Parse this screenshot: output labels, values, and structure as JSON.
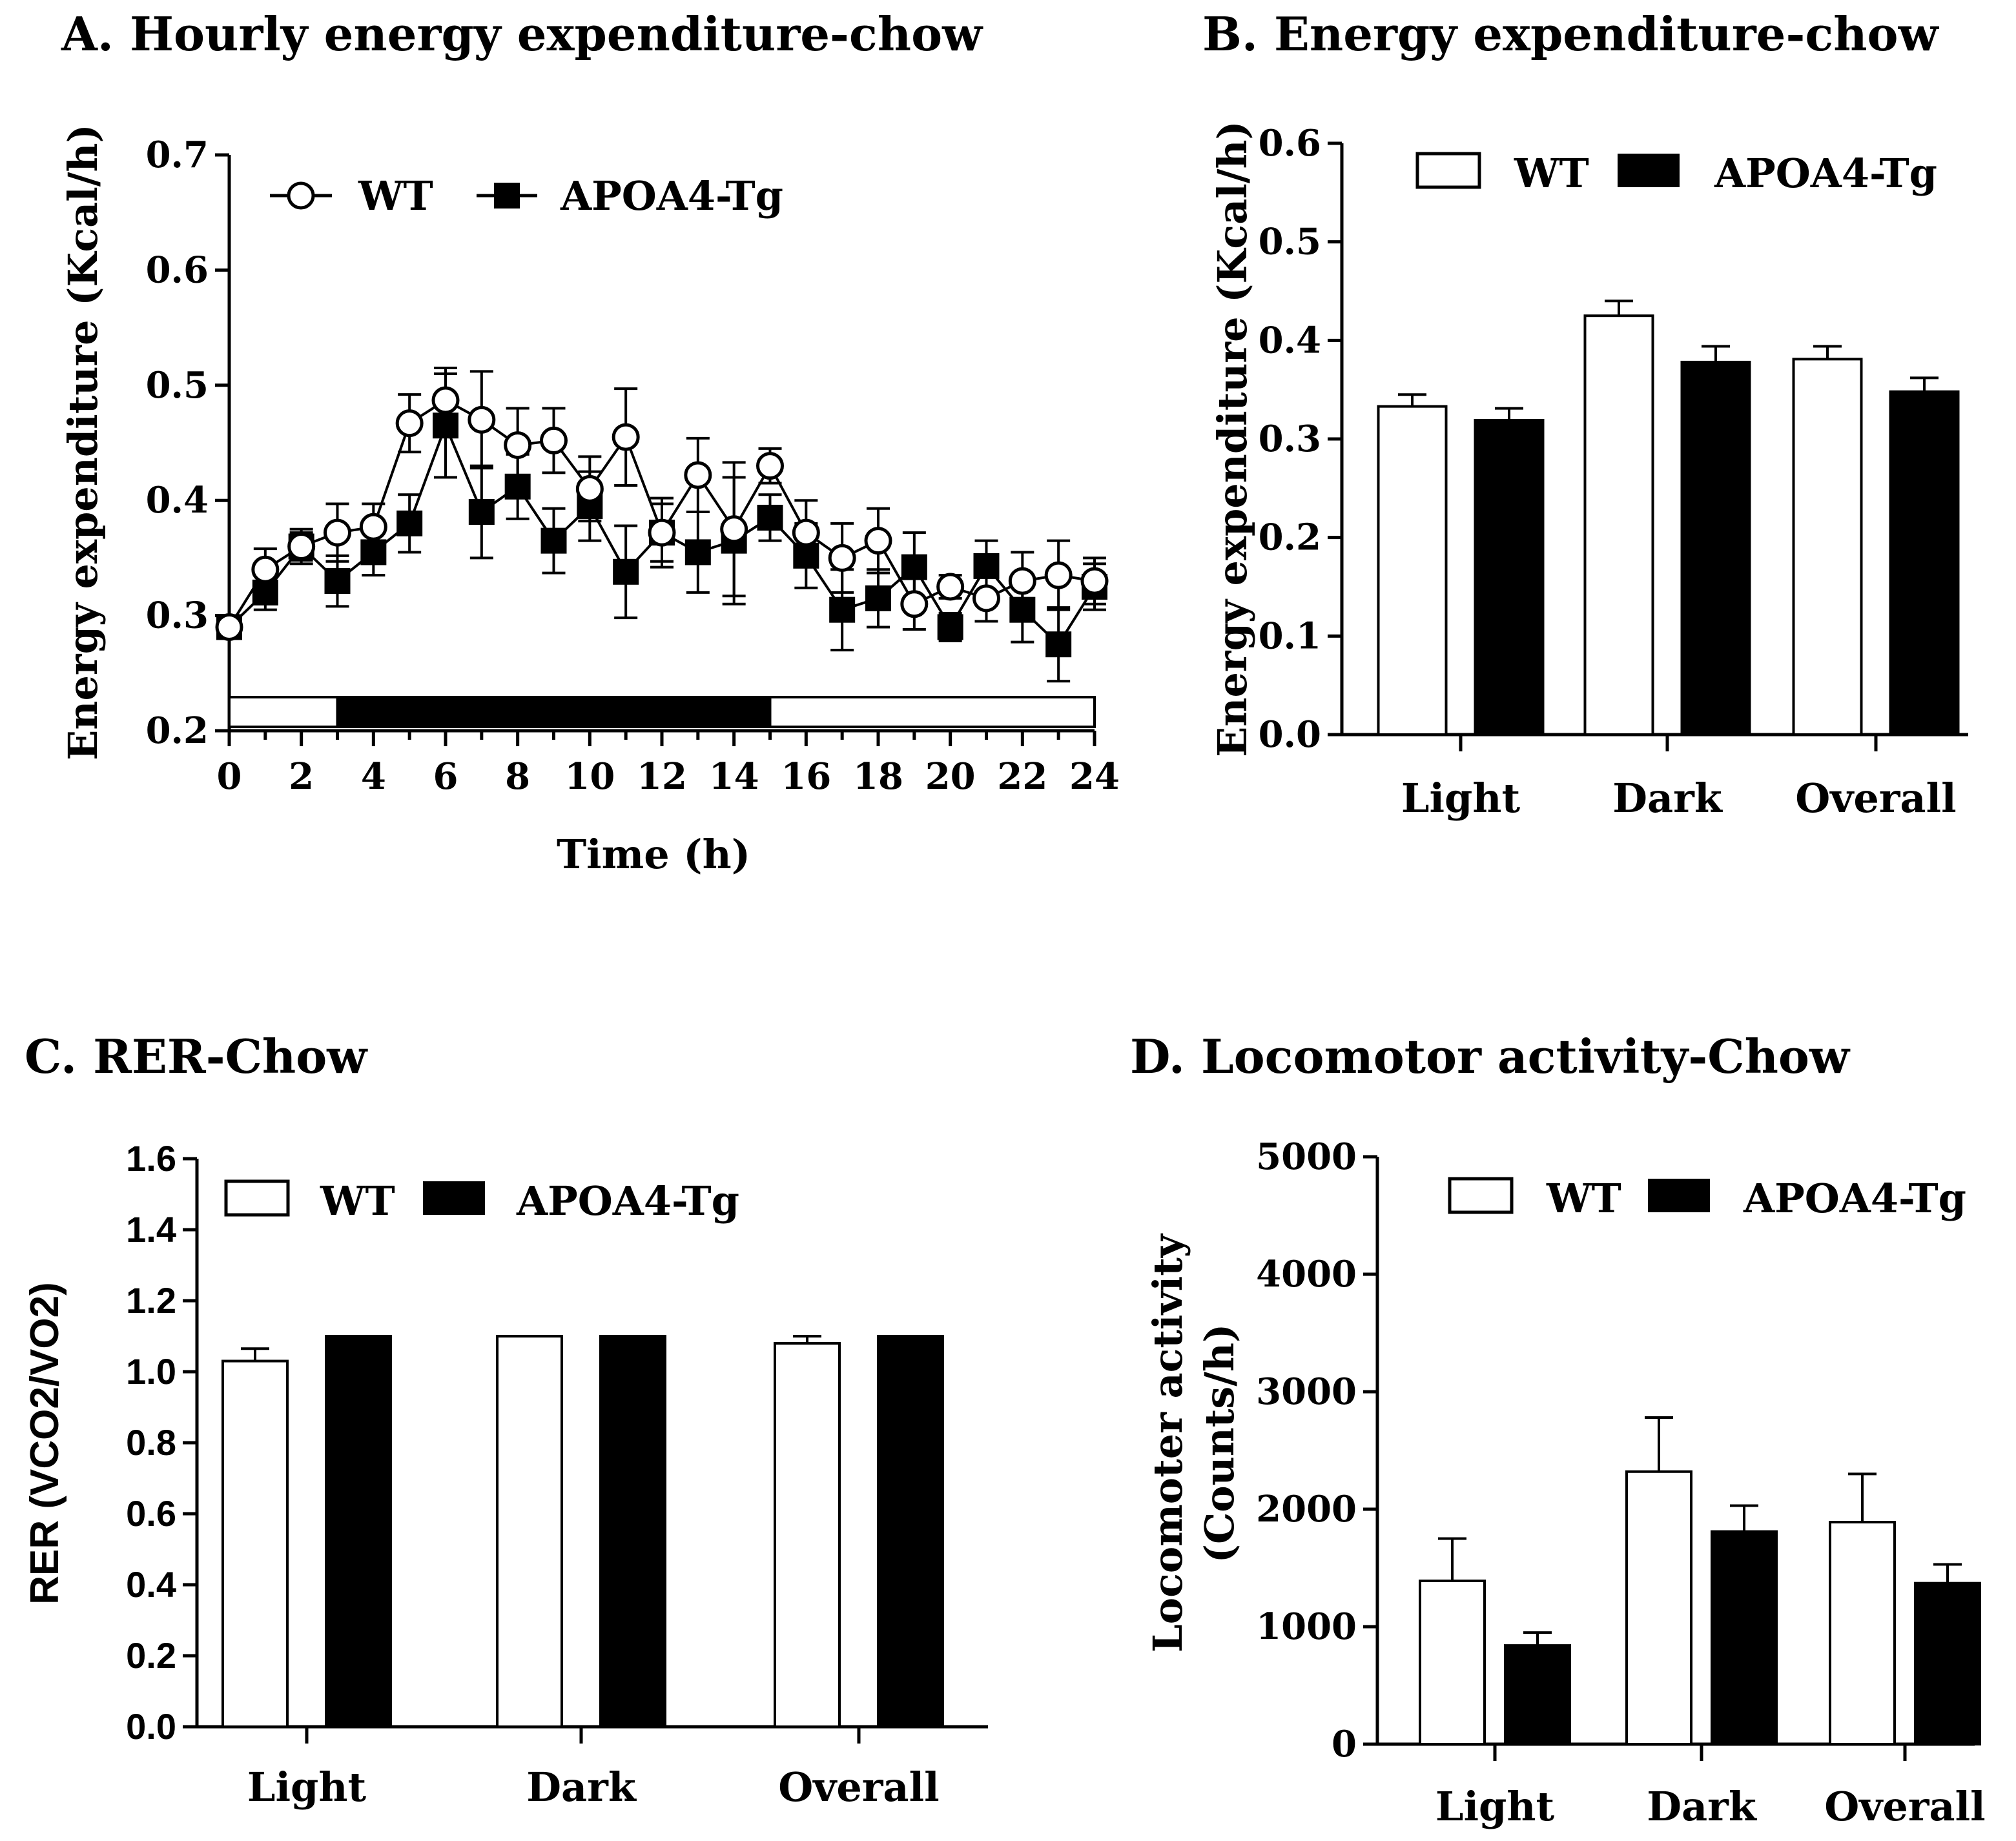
{
  "chart_data": [
    {
      "id": "A",
      "type": "line",
      "title": "A.  Hourly energy expenditure-chow",
      "xlabel": "Time  (h)",
      "ylabel": "Energy expenditure (Kcal/h)",
      "xlim": [
        0,
        24
      ],
      "ylim": [
        0.2,
        0.7
      ],
      "xticks": [
        "0",
        "2",
        "4",
        "6",
        "8",
        "10",
        "12",
        "14",
        "16",
        "18",
        "20",
        "22",
        "24"
      ],
      "yticks": [
        "0.2",
        "0.3",
        "0.4",
        "0.5",
        "0.6",
        "0.7"
      ],
      "light_dark_bar": [
        {
          "from": 0,
          "to": 3,
          "phase": "light"
        },
        {
          "from": 3,
          "to": 15,
          "phase": "dark"
        },
        {
          "from": 15,
          "to": 24,
          "phase": "light"
        }
      ],
      "legend": [
        "WT",
        "APOA4-Tg"
      ],
      "x": [
        0,
        1,
        2,
        3,
        4,
        5,
        6,
        7,
        8,
        9,
        10,
        11,
        12,
        13,
        14,
        15,
        16,
        17,
        18,
        19,
        20,
        21,
        22,
        23,
        24
      ],
      "series": [
        {
          "name": "WT",
          "marker": "open-circle",
          "values": [
            0.29,
            0.34,
            0.36,
            0.372,
            0.377,
            0.467,
            0.487,
            0.47,
            0.448,
            0.452,
            0.41,
            0.455,
            0.372,
            0.422,
            0.375,
            0.43,
            0.372,
            0.35,
            0.365,
            0.31,
            0.325,
            0.315,
            0.33,
            0.335,
            0.33
          ],
          "errors": [
            0.005,
            0.018,
            0.015,
            0.025,
            0.02,
            0.025,
            0.028,
            0.042,
            0.032,
            0.028,
            0.028,
            0.042,
            0.03,
            0.032,
            0.058,
            0.015,
            0.028,
            0.03,
            0.028,
            0.022,
            0.01,
            0.02,
            0.025,
            0.03,
            0.02
          ]
        },
        {
          "name": "APOA4-Tg",
          "marker": "filled-square",
          "values": [
            0.29,
            0.32,
            0.36,
            0.33,
            0.355,
            0.38,
            0.465,
            0.39,
            0.412,
            0.365,
            0.395,
            0.338,
            0.372,
            0.355,
            0.365,
            0.385,
            0.352,
            0.305,
            0.315,
            0.342,
            0.29,
            0.343,
            0.305,
            0.275,
            0.325
          ],
          "errors": [
            0.008,
            0.015,
            0.012,
            0.022,
            0.02,
            0.025,
            0.045,
            0.04,
            0.028,
            0.028,
            0.03,
            0.04,
            0.025,
            0.035,
            0.055,
            0.02,
            0.028,
            0.035,
            0.025,
            0.03,
            0.012,
            0.022,
            0.028,
            0.032,
            0.02
          ]
        }
      ]
    },
    {
      "id": "B",
      "type": "bar",
      "title": "B.  Energy expenditure-chow",
      "xlabel": "",
      "ylabel": "Energy expenditure (Kcal/h)",
      "ylim": [
        0.0,
        0.6
      ],
      "yticks": [
        "0.0",
        "0.1",
        "0.2",
        "0.3",
        "0.4",
        "0.5",
        "0.6"
      ],
      "categories": [
        "Light",
        "Dark",
        "Overall"
      ],
      "legend": [
        "WT",
        "APOA4-Tg"
      ],
      "series": [
        {
          "name": "WT",
          "fill": "open",
          "values": [
            0.333,
            0.425,
            0.381
          ],
          "errors": [
            0.012,
            0.015,
            0.013
          ]
        },
        {
          "name": "APOA4-Tg",
          "fill": "solid",
          "values": [
            0.319,
            0.378,
            0.348
          ],
          "errors": [
            0.012,
            0.016,
            0.014
          ]
        }
      ]
    },
    {
      "id": "C",
      "type": "bar",
      "title": "C. RER-Chow",
      "xlabel": "",
      "ylabel": "RER (VCO2/VO2)",
      "ylim": [
        0.0,
        1.6
      ],
      "yticks": [
        "0.0",
        "0.2",
        "0.4",
        "0.6",
        "0.8",
        "1.0",
        "1.2",
        "1.4",
        "1.6"
      ],
      "categories": [
        "Light",
        "Dark",
        "Overall"
      ],
      "legend": [
        "WT",
        "APOA4-Tg"
      ],
      "series": [
        {
          "name": "WT",
          "fill": "open",
          "values": [
            1.03,
            1.1,
            1.08
          ],
          "errors": [
            0.035,
            0,
            0.02
          ]
        },
        {
          "name": "APOA4-Tg",
          "fill": "solid",
          "values": [
            1.1,
            1.1,
            1.1
          ],
          "errors": [
            0,
            0,
            0
          ]
        }
      ]
    },
    {
      "id": "D",
      "type": "bar",
      "title": "D. Locomotor activity-Chow",
      "xlabel": "",
      "ylabel": [
        "Locomoter activity",
        "(Counts/h)"
      ],
      "ylim": [
        0,
        5000
      ],
      "yticks": [
        "0",
        "1000",
        "2000",
        "3000",
        "4000",
        "5000"
      ],
      "categories": [
        "Light",
        "Dark",
        "Overall"
      ],
      "legend": [
        "WT",
        "APOA4-Tg"
      ],
      "series": [
        {
          "name": "WT",
          "fill": "open",
          "values": [
            1390,
            2320,
            1890
          ],
          "errors": [
            360,
            460,
            410
          ]
        },
        {
          "name": "APOA4-Tg",
          "fill": "solid",
          "values": [
            840,
            1810,
            1370
          ],
          "errors": [
            110,
            220,
            160
          ]
        }
      ]
    }
  ]
}
